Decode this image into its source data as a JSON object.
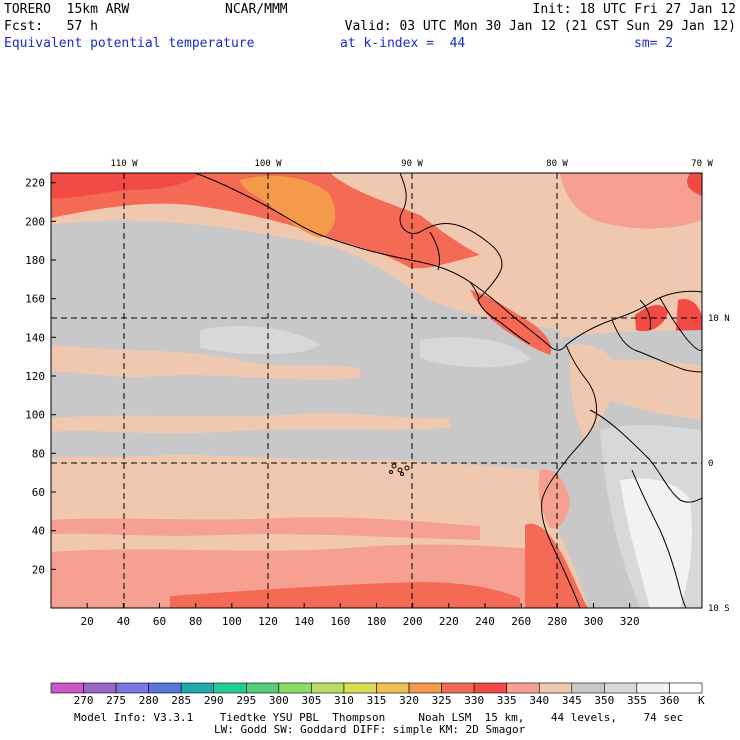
{
  "header": {
    "model": "TORERO  15km ARW",
    "org": "NCAR/MMM",
    "init": "Init: 18 UTC Fri 27 Jan 12",
    "fcst": "Fcst:   57 h",
    "valid": "Valid: 03 UTC Mon 30 Jan 12 (21 CST Sun 29 Jan 12)",
    "field": "Equivalent potential temperature",
    "level": "at k-index =  44",
    "smooth": "sm= 2"
  },
  "map": {
    "longitude_labels": [
      "110 W",
      "100 W",
      "90 W",
      "80 W",
      "70 W"
    ],
    "latitude_labels": [
      "10 N",
      "0",
      "10 S"
    ],
    "x_ticks": [
      "20",
      "40",
      "60",
      "80",
      "100",
      "120",
      "140",
      "160",
      "180",
      "200",
      "220",
      "240",
      "260",
      "280",
      "300",
      "320"
    ],
    "y_ticks": [
      "220",
      "200",
      "180",
      "160",
      "140",
      "120",
      "100",
      "80",
      "60",
      "40",
      "20"
    ]
  },
  "colorbar": {
    "labels": [
      "270",
      "275",
      "280",
      "285",
      "290",
      "295",
      "300",
      "305",
      "310",
      "315",
      "320",
      "325",
      "330",
      "335",
      "340",
      "345",
      "350",
      "355",
      "360"
    ],
    "unit": "K",
    "colors": [
      "#cc55cc",
      "#9966cc",
      "#7777dd",
      "#5577dd",
      "#22aaaa",
      "#22cc99",
      "#55cc77",
      "#88dd66",
      "#bbdd66",
      "#dddd55",
      "#f0c050",
      "#f59a4a",
      "#f56a55",
      "#f24a45",
      "#f5a090",
      "#f0c8b0",
      "#c8c8c8",
      "#d8d8d8",
      "#f2f2f2",
      "#ffffff"
    ]
  },
  "footer": {
    "line1": "Model Info: V3.3.1    Tiedtke YSU PBL  Thompson     Noah LSM  15 km,    44 levels,    74 sec",
    "line2": "LW: Godd SW: Goddard DIFF: simple KM: 2D Smagor"
  }
}
